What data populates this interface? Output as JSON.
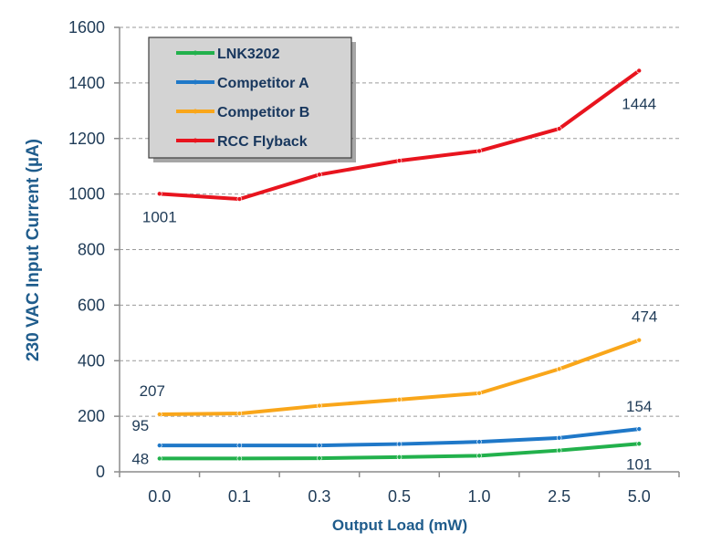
{
  "chart_data": {
    "type": "line",
    "title": "",
    "xlabel": "Output Load (mW)",
    "ylabel": "230 VAC Input Current (µA)",
    "categories": [
      "0.0",
      "0.1",
      "0.3",
      "0.5",
      "1.0",
      "2.5",
      "5.0"
    ],
    "ylim": [
      0,
      1600
    ],
    "yticks": [
      0,
      200,
      400,
      600,
      800,
      1000,
      1200,
      1400,
      1600
    ],
    "ytick_labels": [
      "0",
      "200",
      "400",
      "600",
      "800",
      "1000",
      "1200",
      "1400",
      "1600"
    ],
    "grid": "horizontal dashed",
    "legend_position": "top-left",
    "series": [
      {
        "name": "LNK3202",
        "color": "#22b14c",
        "values": [
          48,
          48,
          49,
          53,
          58,
          77,
          101
        ]
      },
      {
        "name": "Competitor A",
        "color": "#1f78c8",
        "values": [
          95,
          95,
          95,
          100,
          108,
          122,
          154
        ]
      },
      {
        "name": "Competitor B",
        "color": "#f9a61a",
        "values": [
          207,
          210,
          238,
          260,
          283,
          370,
          474
        ]
      },
      {
        "name": "RCC Flyback",
        "color": "#e8141e",
        "values": [
          1001,
          982,
          1070,
          1120,
          1155,
          1235,
          1444
        ]
      }
    ],
    "annotations": [
      {
        "text": "1001",
        "series": "RCC Flyback",
        "index": 0
      },
      {
        "text": "1444",
        "series": "RCC Flyback",
        "index": 6
      },
      {
        "text": "474",
        "series": "Competitor B",
        "index": 6
      },
      {
        "text": "207",
        "series": "Competitor B",
        "index": 0
      },
      {
        "text": "154",
        "series": "Competitor A",
        "index": 6
      },
      {
        "text": "95",
        "series": "Competitor A",
        "index": 0
      },
      {
        "text": "48",
        "series": "LNK3202",
        "index": 0
      },
      {
        "text": "101",
        "series": "LNK3202",
        "index": 6
      }
    ]
  }
}
